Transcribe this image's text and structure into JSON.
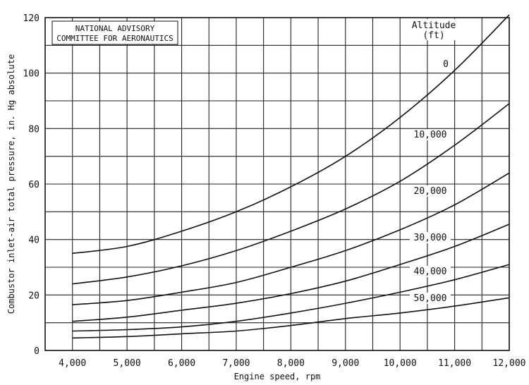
{
  "chart_data": {
    "type": "line",
    "title": "",
    "xlabel": "Engine speed, rpm",
    "ylabel": "Combustor inlet-air total pressure, in. Hg absolute",
    "xlim": [
      3500,
      12000
    ],
    "ylim": [
      0,
      120
    ],
    "x_ticks": [
      4000,
      5000,
      6000,
      7000,
      8000,
      9000,
      10000,
      11000,
      12000
    ],
    "x_tick_labels": [
      "4,000",
      "5,000",
      "6,000",
      "7,000",
      "8,000",
      "9,000",
      "10,000",
      "11,000",
      "12,000"
    ],
    "y_ticks": [
      0,
      20,
      40,
      60,
      80,
      100,
      120
    ],
    "y_tick_labels": [
      "0",
      "20",
      "40",
      "60",
      "80",
      "100",
      "120"
    ],
    "grid": true,
    "legend_title": [
      "Altitude",
      "(ft)"
    ],
    "note": [
      "NATIONAL ADVISORY",
      "COMMITTEE FOR AERONAUTICS"
    ],
    "series": [
      {
        "name": "0",
        "x": [
          4000,
          5000,
          6000,
          7000,
          8000,
          9000,
          10000,
          11000,
          12000
        ],
        "y": [
          35,
          37.5,
          43,
          50,
          59,
          70,
          84,
          101,
          121
        ]
      },
      {
        "name": "10,000",
        "x": [
          4000,
          5000,
          6000,
          7000,
          8000,
          9000,
          10000,
          11000,
          12000
        ],
        "y": [
          24,
          26.5,
          30.5,
          36,
          43,
          51,
          61,
          74,
          89
        ]
      },
      {
        "name": "20,000",
        "x": [
          4000,
          5000,
          6000,
          7000,
          8000,
          9000,
          10000,
          11000,
          12000
        ],
        "y": [
          16.5,
          18,
          21,
          24.5,
          30,
          36,
          43.5,
          52.5,
          64
        ]
      },
      {
        "name": "30,000",
        "x": [
          4000,
          5000,
          6000,
          7000,
          8000,
          9000,
          10000,
          11000,
          12000
        ],
        "y": [
          10.5,
          12,
          14.5,
          17,
          20.5,
          25,
          31,
          37.5,
          45.5
        ]
      },
      {
        "name": "40,000",
        "x": [
          4000,
          5000,
          6000,
          7000,
          8000,
          9000,
          10000,
          11000,
          12000
        ],
        "y": [
          7,
          7.5,
          8.5,
          10.5,
          13.5,
          17,
          21,
          25.5,
          31
        ]
      },
      {
        "name": "50,000",
        "x": [
          4000,
          5000,
          6000,
          7000,
          8000,
          9000,
          10000,
          11000,
          12000
        ],
        "y": [
          4.5,
          5,
          6,
          7,
          9,
          11.5,
          13.5,
          16,
          19
        ]
      }
    ]
  }
}
